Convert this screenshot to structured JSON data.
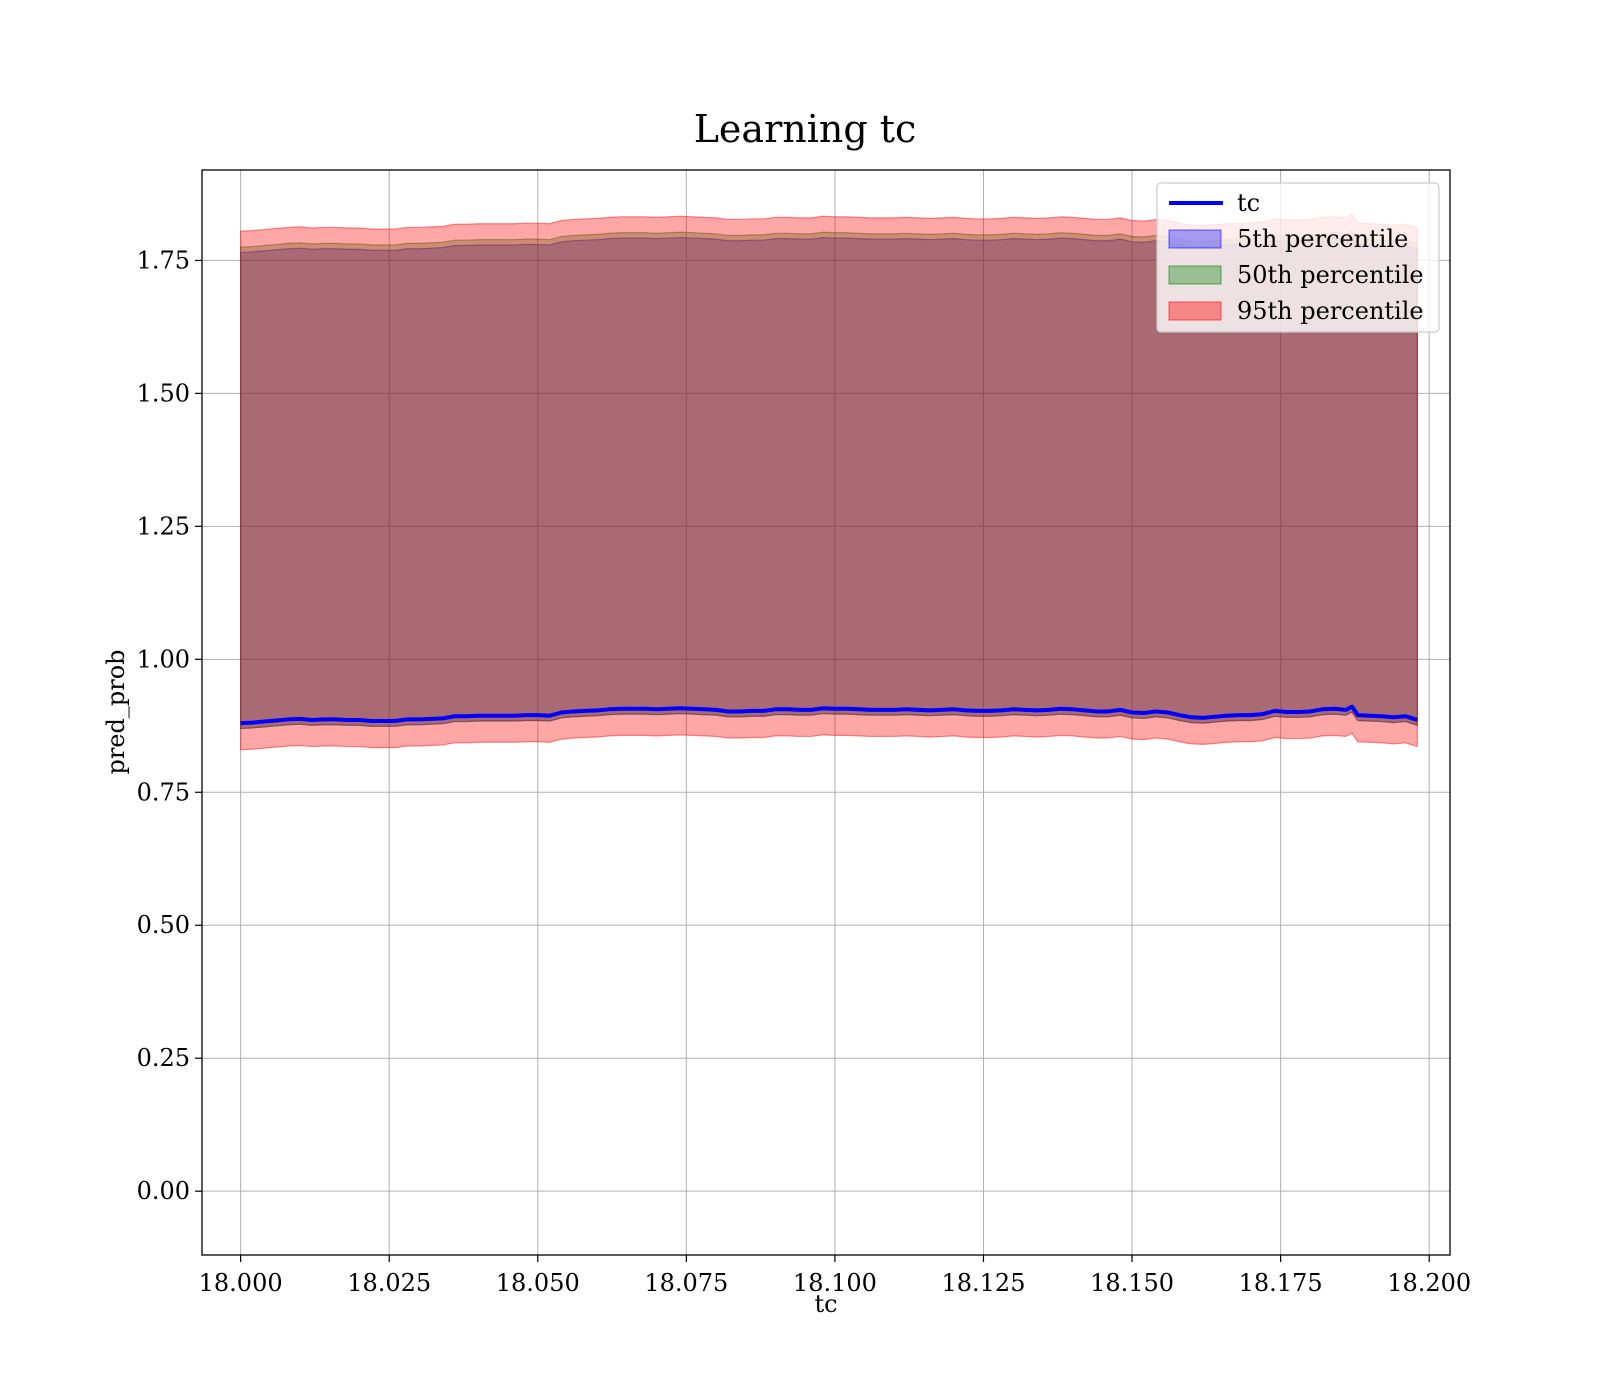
{
  "chart_data": {
    "type": "area",
    "title": "Learning tc",
    "xlabel": "tc",
    "ylabel": "pred_prob",
    "xlim": [
      17.9935,
      18.2035
    ],
    "ylim": [
      -0.12,
      1.92
    ],
    "grid": true,
    "legend_position": "top-right",
    "xticks": [
      18.0,
      18.025,
      18.05,
      18.075,
      18.1,
      18.125,
      18.15,
      18.175,
      18.2
    ],
    "xtick_labels": [
      "18.000",
      "18.025",
      "18.050",
      "18.075",
      "18.100",
      "18.125",
      "18.150",
      "18.175",
      "18.200"
    ],
    "yticks": [
      0.0,
      0.25,
      0.5,
      0.75,
      1.0,
      1.25,
      1.5,
      1.75
    ],
    "ytick_labels": [
      "0.00",
      "0.25",
      "0.50",
      "0.75",
      "1.00",
      "1.25",
      "1.50",
      "1.75"
    ],
    "x": [
      18.0,
      18.002,
      18.004,
      18.006,
      18.008,
      18.01,
      18.012,
      18.014,
      18.016,
      18.018,
      18.02,
      18.022,
      18.024,
      18.026,
      18.028,
      18.03,
      18.032,
      18.034,
      18.036,
      18.038,
      18.04,
      18.042,
      18.044,
      18.046,
      18.048,
      18.05,
      18.052,
      18.054,
      18.056,
      18.058,
      18.06,
      18.062,
      18.064,
      18.066,
      18.068,
      18.07,
      18.072,
      18.074,
      18.076,
      18.078,
      18.08,
      18.082,
      18.084,
      18.086,
      18.088,
      18.09,
      18.092,
      18.094,
      18.096,
      18.098,
      18.1,
      18.102,
      18.104,
      18.106,
      18.108,
      18.11,
      18.112,
      18.114,
      18.116,
      18.118,
      18.12,
      18.122,
      18.124,
      18.126,
      18.128,
      18.13,
      18.132,
      18.134,
      18.136,
      18.138,
      18.14,
      18.142,
      18.144,
      18.146,
      18.148,
      18.15,
      18.152,
      18.154,
      18.156,
      18.158,
      18.16,
      18.162,
      18.164,
      18.166,
      18.168,
      18.17,
      18.172,
      18.174,
      18.176,
      18.178,
      18.18,
      18.182,
      18.184,
      18.186,
      18.187,
      18.188,
      18.19,
      18.192,
      18.194,
      18.196,
      18.198
    ],
    "line_series": {
      "name": "tc",
      "color": "#0000ff",
      "values": [
        0.88,
        0.881,
        0.883,
        0.885,
        0.887,
        0.888,
        0.886,
        0.887,
        0.887,
        0.886,
        0.886,
        0.884,
        0.884,
        0.884,
        0.887,
        0.887,
        0.888,
        0.889,
        0.893,
        0.893,
        0.894,
        0.894,
        0.894,
        0.894,
        0.895,
        0.895,
        0.894,
        0.9,
        0.902,
        0.903,
        0.904,
        0.906,
        0.907,
        0.907,
        0.907,
        0.906,
        0.907,
        0.908,
        0.907,
        0.906,
        0.905,
        0.902,
        0.902,
        0.903,
        0.903,
        0.906,
        0.906,
        0.905,
        0.905,
        0.908,
        0.907,
        0.907,
        0.906,
        0.905,
        0.905,
        0.905,
        0.906,
        0.905,
        0.904,
        0.905,
        0.906,
        0.904,
        0.903,
        0.903,
        0.904,
        0.906,
        0.905,
        0.904,
        0.905,
        0.907,
        0.906,
        0.904,
        0.902,
        0.902,
        0.905,
        0.9,
        0.899,
        0.902,
        0.9,
        0.895,
        0.891,
        0.89,
        0.892,
        0.894,
        0.895,
        0.895,
        0.897,
        0.903,
        0.901,
        0.901,
        0.902,
        0.906,
        0.907,
        0.905,
        0.911,
        0.895,
        0.894,
        0.893,
        0.891,
        0.893,
        0.886
      ]
    },
    "band_series": [
      {
        "name": "5th percentile",
        "color": "#0000ff",
        "alpha": 0.3,
        "lower_offset": -0.01,
        "upper_offset": 0.885
      },
      {
        "name": "50th percentile",
        "color": "#008000",
        "alpha": 0.3,
        "lower_offset": -0.01,
        "upper_offset": 0.895
      },
      {
        "name": "95th percentile",
        "color": "#ff0000",
        "alpha": 0.35,
        "lower_offset": -0.05,
        "upper_offset": 0.925
      }
    ]
  }
}
